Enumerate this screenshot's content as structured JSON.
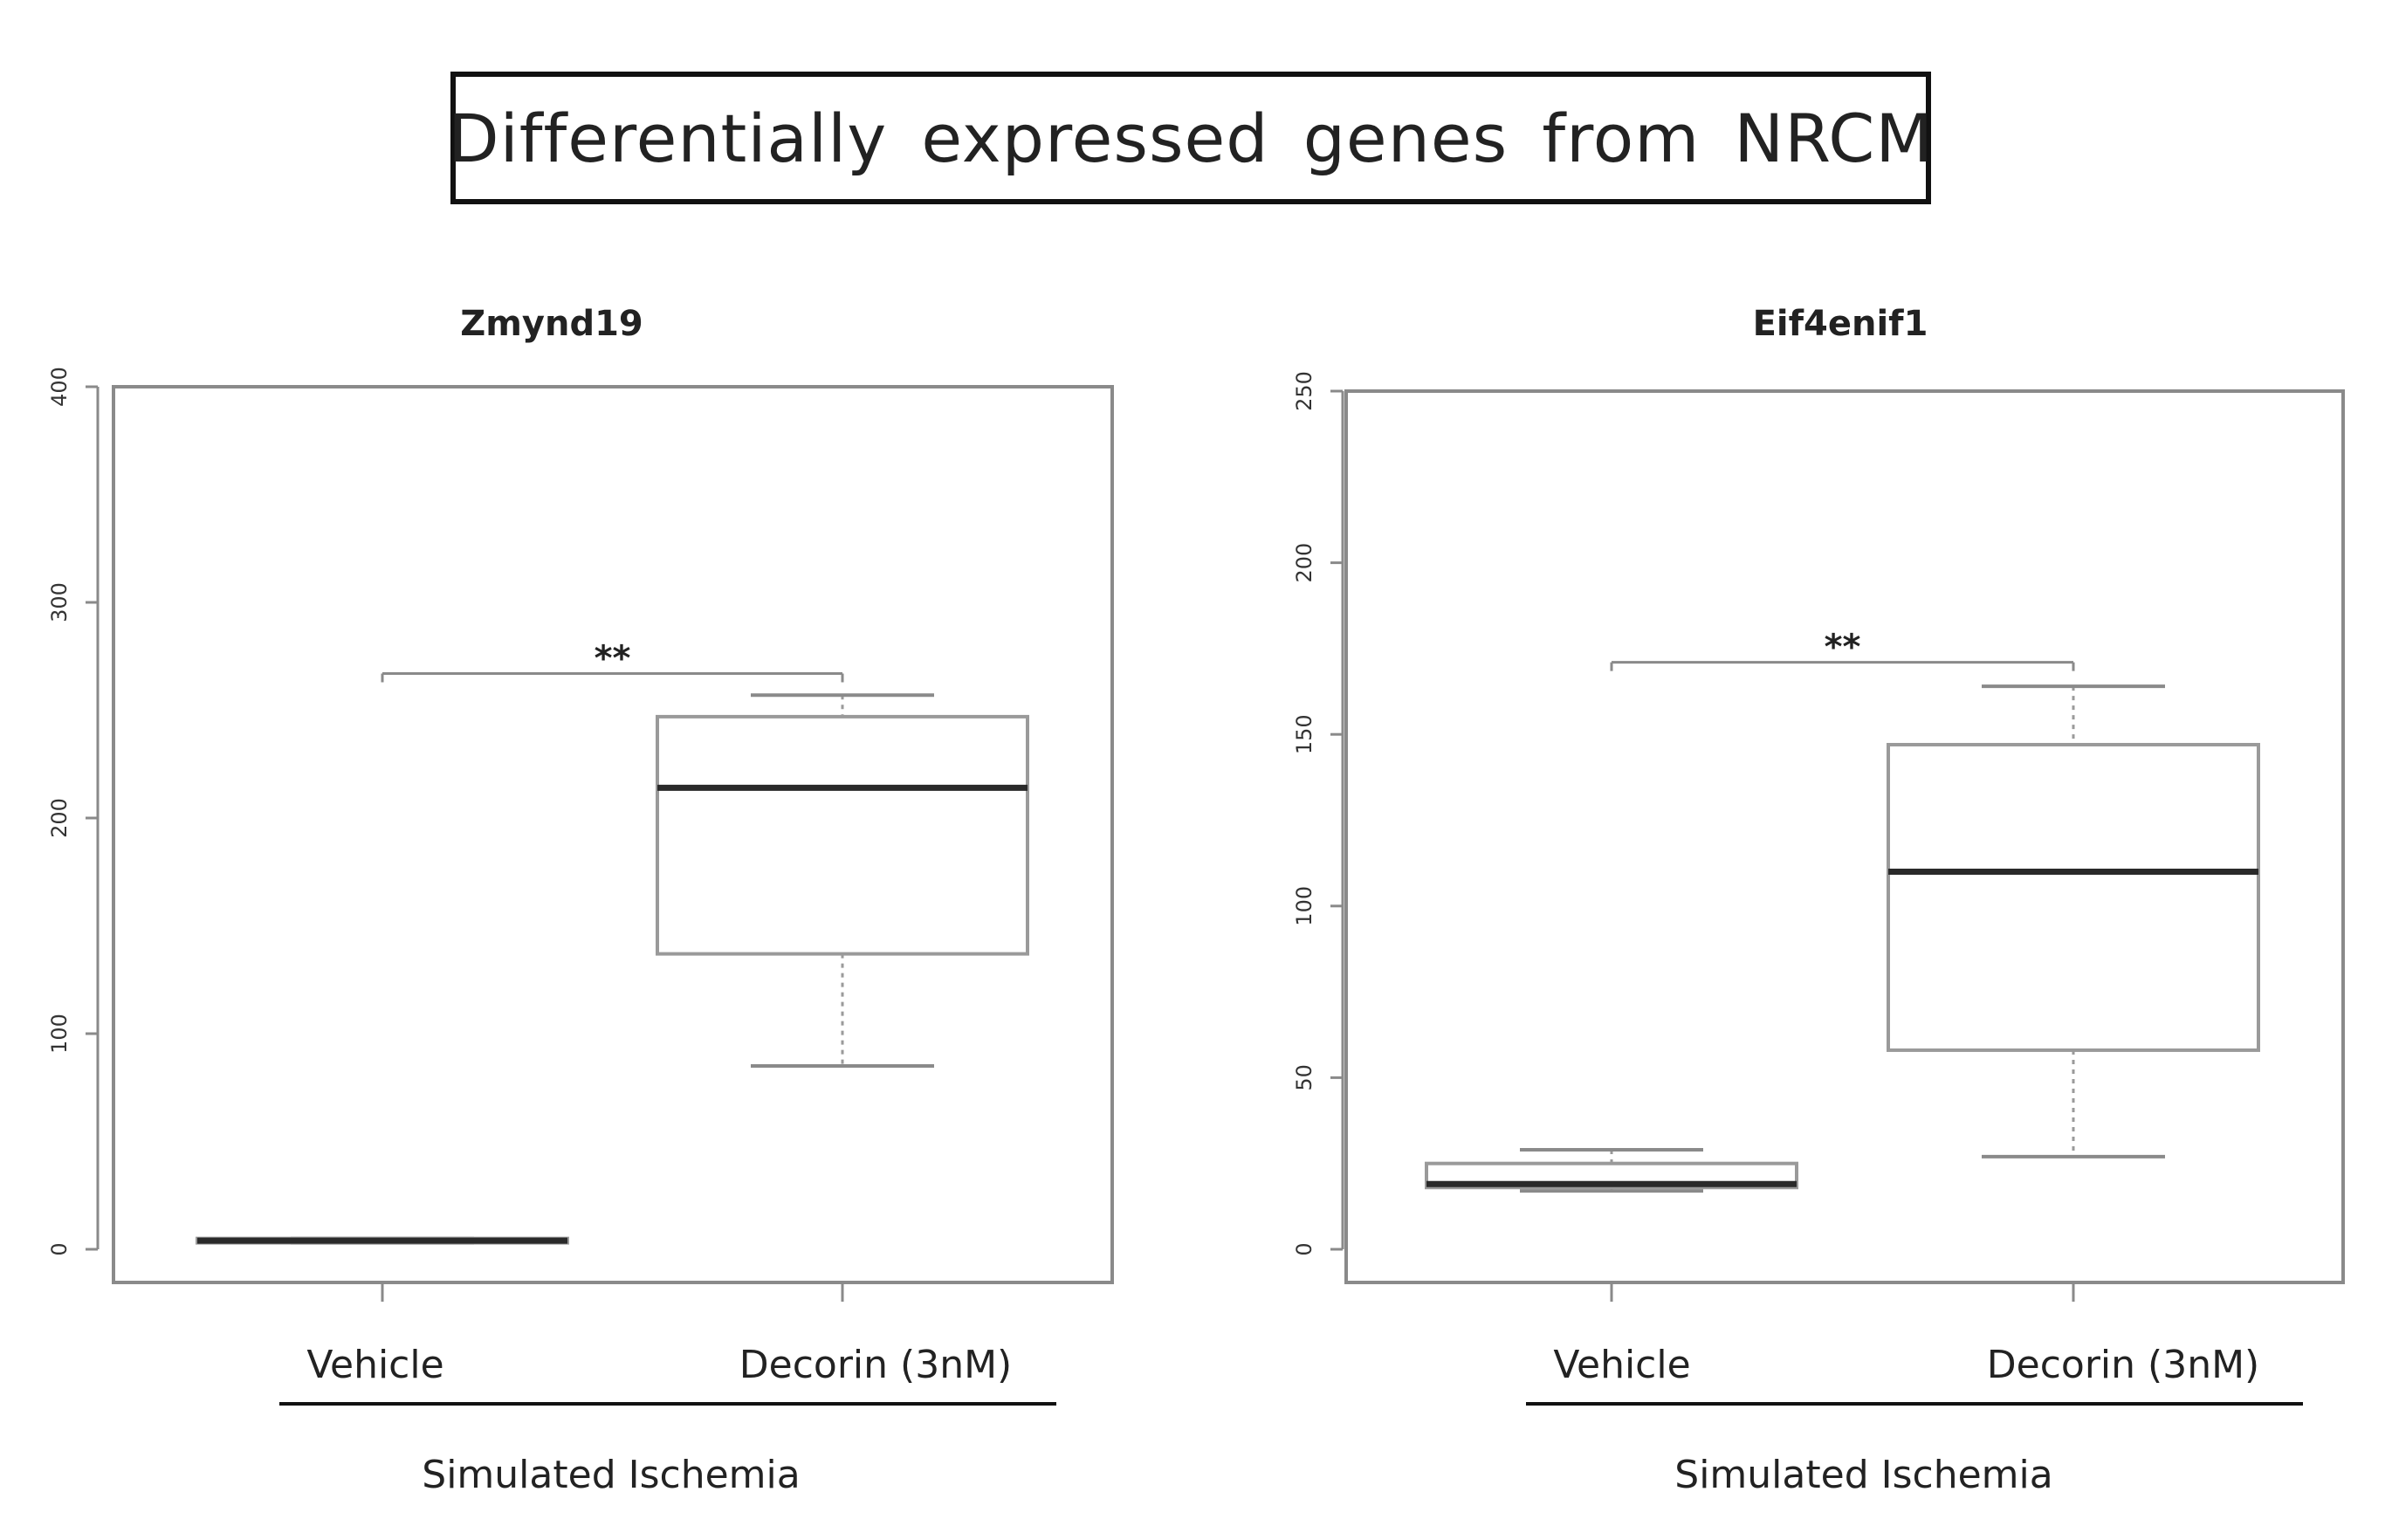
{
  "figure_title": "Differentially expressed genes from NRCM",
  "chart_data": [
    {
      "type": "box",
      "title": "Zmynd19",
      "ylim": [
        0,
        400
      ],
      "yticks": [
        0,
        100,
        200,
        300,
        400
      ],
      "categories": [
        "Vehicle",
        "Decorin (3nM)"
      ],
      "group_label": "Simulated Ischemia",
      "boxes": [
        {
          "category": "Vehicle",
          "whisker_low": 3,
          "q1": 3,
          "median": 4,
          "q3": 5,
          "whisker_high": 5
        },
        {
          "category": "Decorin (3nM)",
          "whisker_low": 85,
          "q1": 137,
          "median": 214,
          "q3": 247,
          "whisker_high": 257
        }
      ],
      "significance": {
        "label": "**",
        "between": [
          0,
          1
        ],
        "y": 267
      }
    },
    {
      "type": "box",
      "title": "Eif4enif1",
      "ylim": [
        0,
        250
      ],
      "yticks": [
        0,
        50,
        100,
        150,
        200,
        250
      ],
      "categories": [
        "Vehicle",
        "Decorin (3nM)"
      ],
      "group_label": "Simulated Ischemia",
      "boxes": [
        {
          "category": "Vehicle",
          "whisker_low": 17,
          "q1": 18,
          "median": 19,
          "q3": 25,
          "whisker_high": 29
        },
        {
          "category": "Decorin (3nM)",
          "whisker_low": 27,
          "q1": 58,
          "median": 110,
          "q3": 147,
          "whisker_high": 164
        }
      ],
      "significance": {
        "label": "**",
        "between": [
          0,
          1
        ],
        "y": 171
      }
    }
  ]
}
